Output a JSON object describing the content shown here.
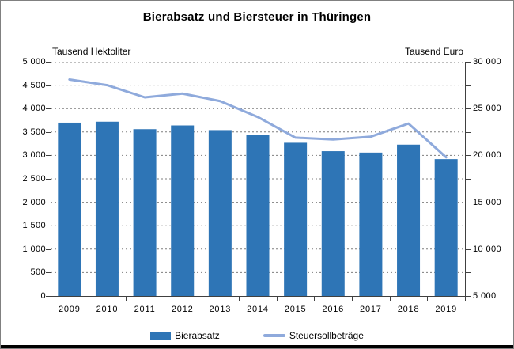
{
  "title": "Bierabsatz und Biersteuer in Thüringen",
  "left_axis": {
    "unit": "Tausend Hektoliter",
    "min": 0,
    "max": 5000,
    "tick_values": [
      0,
      500,
      1000,
      1500,
      2000,
      2500,
      3000,
      3500,
      4000,
      4500,
      5000
    ],
    "tick_labels": [
      "0",
      "500",
      "1 000",
      "1 500",
      "2 000",
      "2 500",
      "3 000",
      "3 500",
      "4 000",
      "4 500",
      "5 000"
    ]
  },
  "right_axis": {
    "unit": "Tausend Euro",
    "min": 5000,
    "max": 30000,
    "label_values": [
      5000,
      10000,
      15000,
      20000,
      25000,
      30000
    ],
    "label_texts": [
      "5 000",
      "10 000",
      "15 000",
      "20 000",
      "25 000",
      "30 000"
    ],
    "minor_step": 2500
  },
  "colors": {
    "bar": "#2E75B6",
    "line": "#8FAADC",
    "axis": "#404040",
    "grid": "#7F7F7F",
    "text": "#000000"
  },
  "legend": {
    "bar_label": "Bierabsatz",
    "line_label": "Steuersollbeträge"
  },
  "chart_data": {
    "type": "bar",
    "subtype": "bar-line-combo",
    "title": "Bierabsatz und Biersteuer in Thüringen",
    "categories": [
      "2009",
      "2010",
      "2011",
      "2012",
      "2013",
      "2014",
      "2015",
      "2016",
      "2017",
      "2018",
      "2019"
    ],
    "series": [
      {
        "name": "Bierabsatz",
        "type": "bar",
        "axis": "left",
        "unit": "Tausend Hektoliter",
        "values": [
          3700,
          3720,
          3560,
          3640,
          3540,
          3440,
          3270,
          3090,
          3060,
          3230,
          2920
        ]
      },
      {
        "name": "Steuersollbeträge",
        "type": "line",
        "axis": "right",
        "unit": "Tausend Euro",
        "values": [
          28100,
          27500,
          26200,
          26600,
          25800,
          24100,
          21900,
          21700,
          22000,
          23400,
          19800
        ]
      }
    ],
    "ylim_left": [
      0,
      5000
    ],
    "ylim_right": [
      5000,
      30000
    ],
    "grid": "horizontal-dashed",
    "legend_position": "bottom"
  }
}
